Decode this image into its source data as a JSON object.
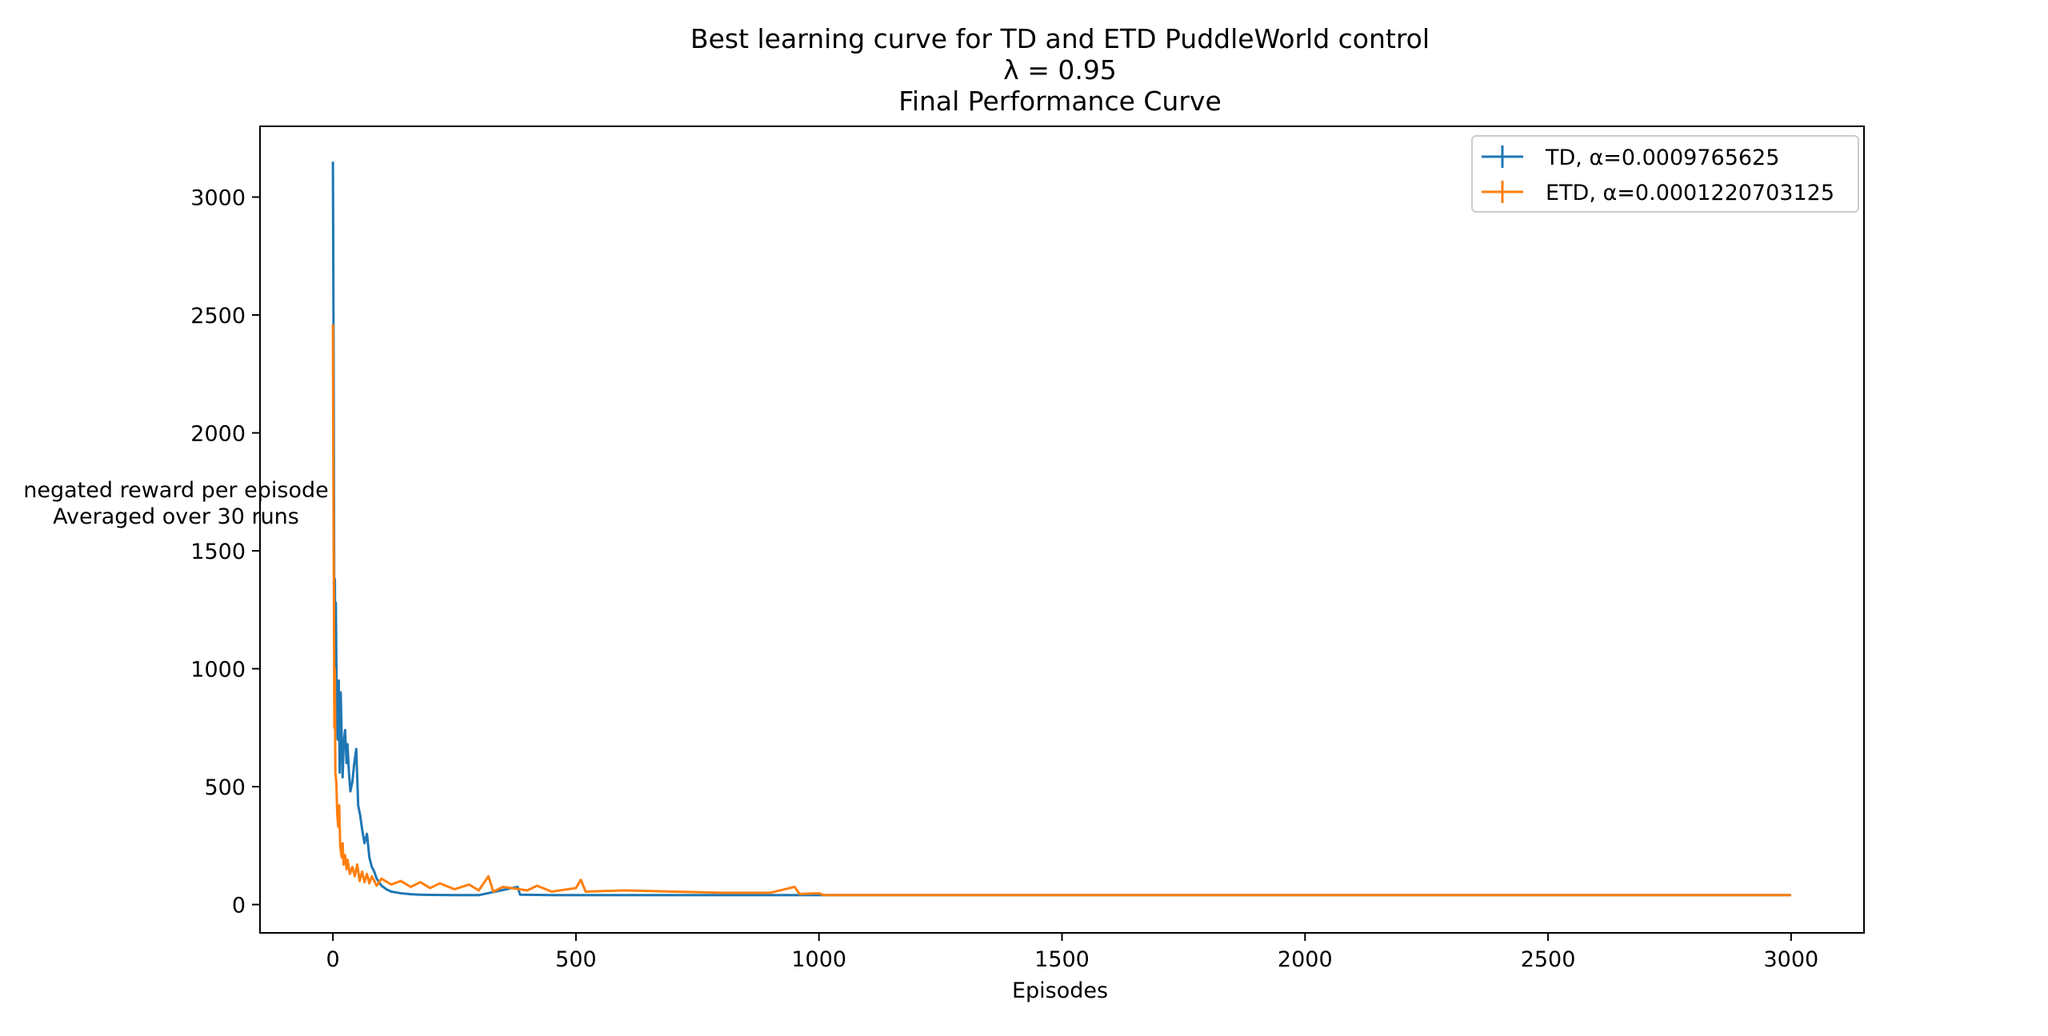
{
  "chart_data": {
    "type": "line",
    "title": [
      "Best learning curve for TD and ETD PuddleWorld control",
      "λ = 0.95",
      "Final Performance Curve"
    ],
    "xlabel": "Episodes",
    "ylabel": [
      "negated reward per episode",
      "Averaged over 30 runs"
    ],
    "xlim": [
      -150,
      3150
    ],
    "ylim": [
      -120,
      3300
    ],
    "xticks": [
      0,
      500,
      1000,
      1500,
      2000,
      2500,
      3000
    ],
    "yticks": [
      0,
      500,
      1000,
      1500,
      2000,
      2500,
      3000
    ],
    "xtick_labels": [
      "0",
      "500",
      "1000",
      "1500",
      "2000",
      "2500",
      "3000"
    ],
    "ytick_labels": [
      "0",
      "500",
      "1000",
      "1500",
      "2000",
      "2500",
      "3000"
    ],
    "legend_position": "top-right",
    "series": [
      {
        "name": "TD, α=0.0009765625",
        "color": "#1f77b4",
        "points": [
          [
            0,
            3150
          ],
          [
            1,
            2600
          ],
          [
            2,
            1900
          ],
          [
            3,
            1050
          ],
          [
            4,
            1380
          ],
          [
            5,
            900
          ],
          [
            6,
            1280
          ],
          [
            8,
            820
          ],
          [
            10,
            700
          ],
          [
            12,
            950
          ],
          [
            14,
            560
          ],
          [
            16,
            900
          ],
          [
            18,
            720
          ],
          [
            20,
            540
          ],
          [
            22,
            680
          ],
          [
            25,
            740
          ],
          [
            28,
            600
          ],
          [
            30,
            680
          ],
          [
            33,
            560
          ],
          [
            36,
            480
          ],
          [
            40,
            520
          ],
          [
            44,
            600
          ],
          [
            48,
            660
          ],
          [
            52,
            420
          ],
          [
            56,
            380
          ],
          [
            60,
            320
          ],
          [
            65,
            260
          ],
          [
            70,
            300
          ],
          [
            75,
            200
          ],
          [
            80,
            160
          ],
          [
            85,
            140
          ],
          [
            90,
            110
          ],
          [
            100,
            80
          ],
          [
            110,
            65
          ],
          [
            120,
            55
          ],
          [
            140,
            48
          ],
          [
            160,
            44
          ],
          [
            180,
            42
          ],
          [
            200,
            41
          ],
          [
            250,
            40
          ],
          [
            300,
            40
          ],
          [
            380,
            75
          ],
          [
            385,
            42
          ],
          [
            450,
            40
          ],
          [
            600,
            40
          ],
          [
            800,
            40
          ],
          [
            1000,
            40
          ],
          [
            1500,
            40
          ],
          [
            2000,
            40
          ],
          [
            2500,
            40
          ],
          [
            3000,
            40
          ]
        ]
      },
      {
        "name": "ETD, α=0.0001220703125",
        "color": "#ff7f0e",
        "points": [
          [
            0,
            2460
          ],
          [
            1,
            1800
          ],
          [
            2,
            1300
          ],
          [
            3,
            750
          ],
          [
            4,
            1000
          ],
          [
            5,
            560
          ],
          [
            7,
            520
          ],
          [
            9,
            380
          ],
          [
            11,
            330
          ],
          [
            13,
            420
          ],
          [
            15,
            250
          ],
          [
            18,
            200
          ],
          [
            20,
            260
          ],
          [
            22,
            170
          ],
          [
            25,
            210
          ],
          [
            28,
            150
          ],
          [
            30,
            190
          ],
          [
            35,
            130
          ],
          [
            40,
            160
          ],
          [
            45,
            120
          ],
          [
            50,
            170
          ],
          [
            55,
            100
          ],
          [
            60,
            140
          ],
          [
            65,
            95
          ],
          [
            70,
            130
          ],
          [
            75,
            90
          ],
          [
            80,
            120
          ],
          [
            90,
            80
          ],
          [
            100,
            110
          ],
          [
            120,
            85
          ],
          [
            140,
            100
          ],
          [
            160,
            75
          ],
          [
            180,
            95
          ],
          [
            200,
            70
          ],
          [
            220,
            90
          ],
          [
            250,
            65
          ],
          [
            280,
            85
          ],
          [
            300,
            60
          ],
          [
            320,
            120
          ],
          [
            330,
            55
          ],
          [
            350,
            75
          ],
          [
            400,
            60
          ],
          [
            420,
            80
          ],
          [
            450,
            55
          ],
          [
            500,
            70
          ],
          [
            510,
            105
          ],
          [
            520,
            55
          ],
          [
            600,
            60
          ],
          [
            700,
            55
          ],
          [
            800,
            50
          ],
          [
            900,
            50
          ],
          [
            950,
            75
          ],
          [
            960,
            45
          ],
          [
            1000,
            48
          ],
          [
            1010,
            40
          ],
          [
            1500,
            40
          ],
          [
            2000,
            40
          ],
          [
            2500,
            40
          ],
          [
            3000,
            40
          ]
        ]
      }
    ]
  }
}
